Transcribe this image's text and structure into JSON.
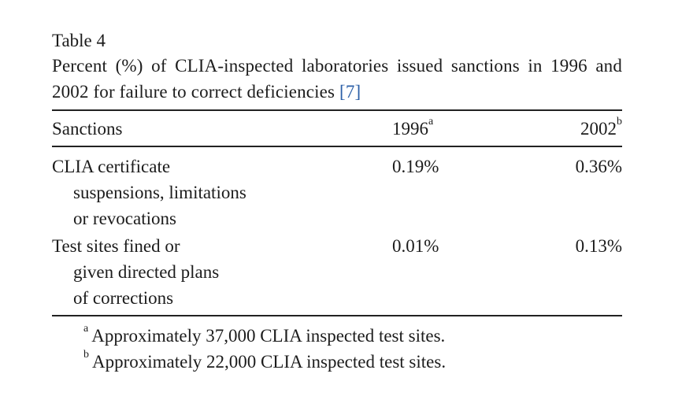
{
  "table": {
    "label": "Table 4",
    "caption_text": "Percent (%) of CLIA-inspected laboratories issued sanctions in 1996 and 2002 for failure to correct deficiencies ",
    "caption_ref": "[7]",
    "headers": {
      "col1": "Sanctions",
      "col2": "1996",
      "col2_mark": "a",
      "col3": "2002",
      "col3_mark": "b"
    },
    "rows": [
      {
        "sanction_line1": "CLIA certificate",
        "sanction_line2": "suspensions, limitations",
        "sanction_line3": "or revocations",
        "y1996": "0.19%",
        "y2002": "0.36%"
      },
      {
        "sanction_line1": "Test sites fined or",
        "sanction_line2": "given directed plans",
        "sanction_line3": "of corrections",
        "y1996": "0.01%",
        "y2002": "0.13%"
      }
    ],
    "footnotes": [
      {
        "mark": "a",
        "text": "Approximately 37,000 CLIA inspected test sites."
      },
      {
        "mark": "b",
        "text": "Approximately 22,000 CLIA inspected test sites."
      }
    ]
  },
  "colors": {
    "text": "#1c1c1c",
    "reference_link": "#2b5fa7",
    "rule": "#222222"
  }
}
